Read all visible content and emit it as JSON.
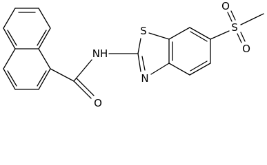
{
  "atom_labels": [
    "NH",
    "O",
    "S",
    "N",
    "S",
    "O",
    "O"
  ]
}
